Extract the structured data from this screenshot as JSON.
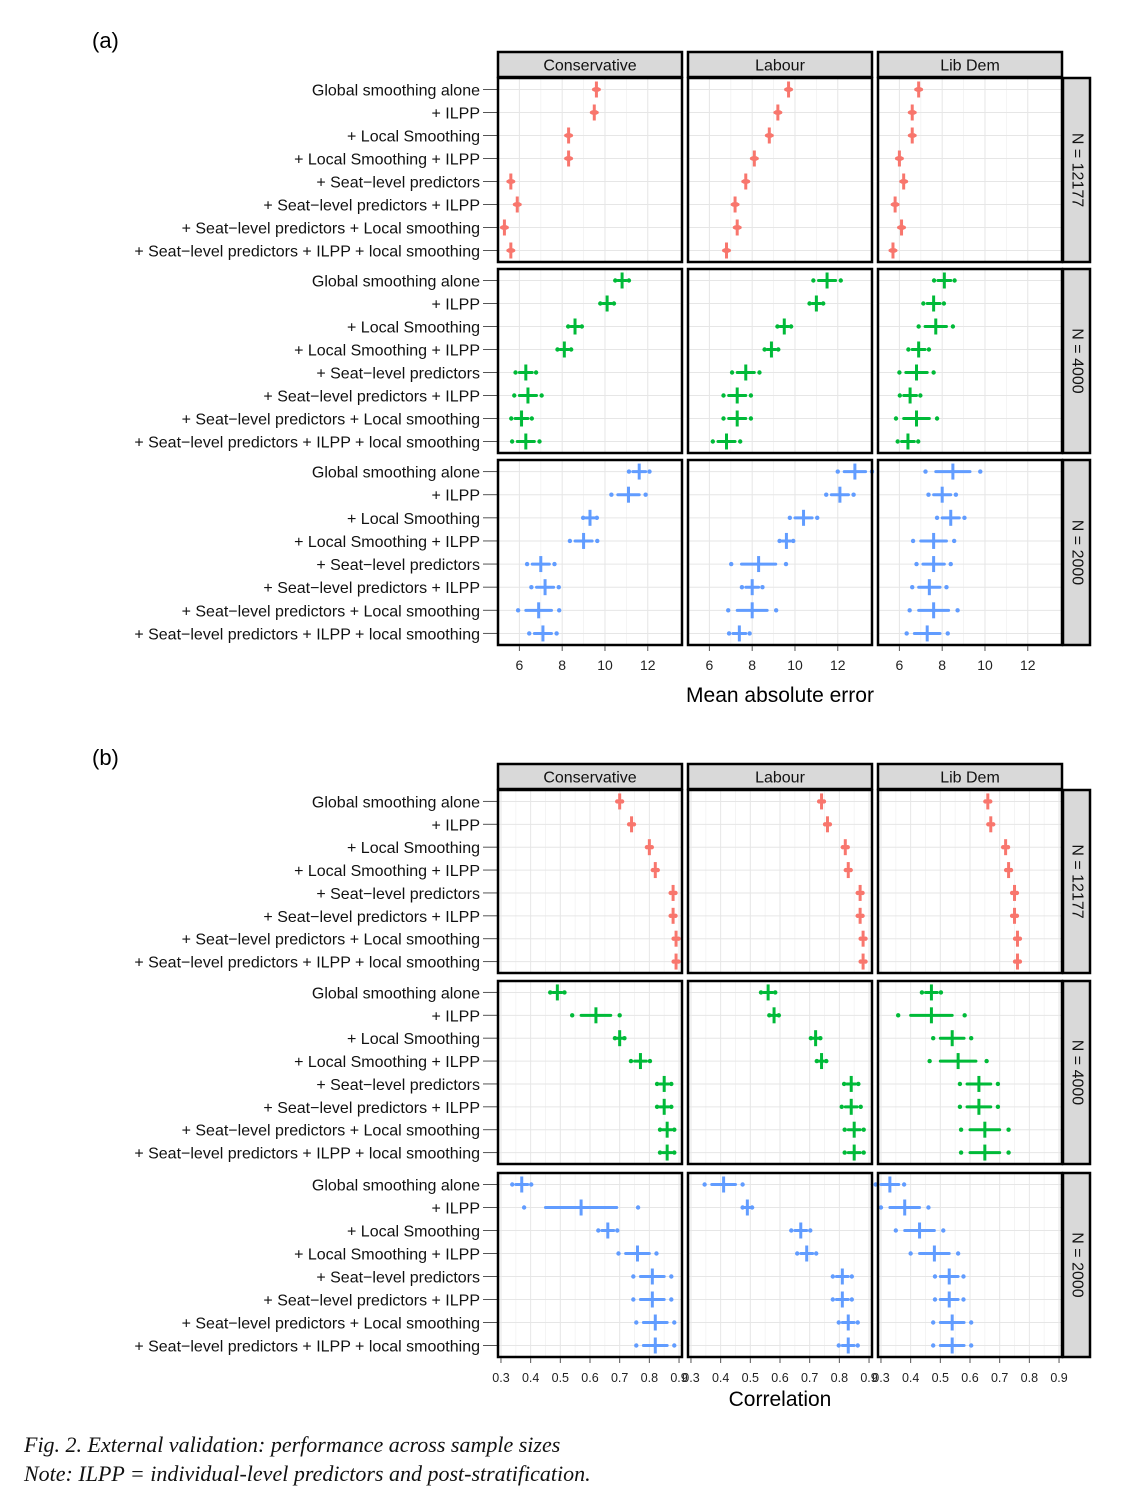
{
  "caption": {
    "line1": "Fig. 2.  External validation: performance across sample sizes",
    "line2": "Note: ILPP = individual-level predictors and post-stratification."
  },
  "colors": {
    "n12177": "#F8766D",
    "n4000": "#00BA38",
    "n2000": "#619CFF",
    "strip": "#D9D9D9"
  },
  "chart_data": [
    {
      "type": "scatter",
      "panel_label": "(a)",
      "xlabel": "Mean absolute error",
      "xlim": [
        5,
        13.6
      ],
      "ticks": [
        6,
        8,
        10,
        12
      ],
      "tick_labels": [
        "6",
        "8",
        "10",
        "12"
      ],
      "parties": [
        "Conservative",
        "Labour",
        "Lib Dem"
      ],
      "sample_sizes": [
        "N = 12177",
        "N = 4000",
        "N = 2000"
      ],
      "models": [
        "Global smoothing alone",
        "+ ILPP",
        "+ Local Smoothing",
        "+ Local Smoothing + ILPP",
        "+ Seat−level predictors",
        "+ Seat−level predictors + ILPP",
        "+ Seat−level predictors + Local smoothing",
        "+ Seat−level predictors + ILPP + local smoothing"
      ],
      "values": [
        [
          [
            9.6,
            9.5,
            8.3,
            8.3,
            5.6,
            5.9,
            5.3,
            5.6
          ],
          [
            9.7,
            9.2,
            8.8,
            8.1,
            7.7,
            7.2,
            7.3,
            6.8
          ],
          [
            6.9,
            6.6,
            6.6,
            6.0,
            6.2,
            5.8,
            6.1,
            5.7
          ]
        ],
        [
          [
            10.8,
            10.1,
            8.6,
            8.1,
            6.3,
            6.4,
            6.1,
            6.3
          ],
          [
            11.5,
            11.0,
            9.5,
            8.9,
            7.7,
            7.3,
            7.3,
            6.8
          ],
          [
            8.1,
            7.6,
            7.7,
            6.9,
            6.8,
            6.5,
            6.8,
            6.4
          ]
        ],
        [
          [
            11.6,
            11.1,
            9.3,
            9.0,
            7.0,
            7.2,
            6.9,
            7.1
          ],
          [
            12.8,
            12.1,
            10.4,
            9.6,
            8.3,
            8.0,
            8.0,
            7.4
          ],
          [
            8.5,
            8.0,
            8.4,
            7.6,
            7.6,
            7.4,
            7.6,
            7.3
          ]
        ]
      ],
      "spreads": [
        [
          [
            0.05,
            0.05,
            0.05,
            0.05,
            0.05,
            0.05,
            0.05,
            0.05
          ],
          [
            0.05,
            0.05,
            0.05,
            0.05,
            0.05,
            0.05,
            0.05,
            0.05
          ],
          [
            0.05,
            0.05,
            0.05,
            0.05,
            0.05,
            0.05,
            0.05,
            0.05
          ]
        ],
        [
          [
            0.2,
            0.2,
            0.2,
            0.2,
            0.3,
            0.4,
            0.3,
            0.4
          ],
          [
            0.4,
            0.2,
            0.2,
            0.2,
            0.4,
            0.4,
            0.4,
            0.4
          ],
          [
            0.3,
            0.3,
            0.5,
            0.3,
            0.5,
            0.3,
            0.6,
            0.3
          ]
        ],
        [
          [
            0.3,
            0.5,
            0.2,
            0.4,
            0.4,
            0.4,
            0.6,
            0.4
          ],
          [
            0.5,
            0.4,
            0.4,
            0.2,
            0.8,
            0.3,
            0.7,
            0.3
          ],
          [
            0.8,
            0.4,
            0.4,
            0.6,
            0.5,
            0.5,
            0.7,
            0.6
          ]
        ]
      ]
    },
    {
      "type": "scatter",
      "panel_label": "(b)",
      "xlabel": "Correlation",
      "xlim": [
        0.29,
        0.91
      ],
      "ticks": [
        0.3,
        0.4,
        0.5,
        0.6,
        0.7,
        0.8,
        0.9
      ],
      "tick_labels": [
        "0.3",
        "0.4",
        "0.5",
        "0.6",
        "0.7",
        "0.8",
        "0.9"
      ],
      "parties": [
        "Conservative",
        "Labour",
        "Lib Dem"
      ],
      "sample_sizes": [
        "N = 12177",
        "N = 4000",
        "N = 2000"
      ],
      "models": [
        "Global smoothing alone",
        "+ ILPP",
        "+ Local Smoothing",
        "+ Local Smoothing + ILPP",
        "+ Seat−level predictors",
        "+ Seat−level predictors + ILPP",
        "+ Seat−level predictors + Local smoothing",
        "+ Seat−level predictors + ILPP + local smoothing"
      ],
      "values": [
        [
          [
            0.7,
            0.74,
            0.8,
            0.82,
            0.88,
            0.88,
            0.89,
            0.89
          ],
          [
            0.74,
            0.76,
            0.82,
            0.83,
            0.87,
            0.87,
            0.88,
            0.88
          ],
          [
            0.66,
            0.67,
            0.72,
            0.73,
            0.75,
            0.75,
            0.76,
            0.76
          ]
        ],
        [
          [
            0.49,
            0.62,
            0.7,
            0.77,
            0.85,
            0.85,
            0.86,
            0.86
          ],
          [
            0.56,
            0.58,
            0.72,
            0.74,
            0.84,
            0.84,
            0.85,
            0.85
          ],
          [
            0.47,
            0.47,
            0.54,
            0.56,
            0.63,
            0.63,
            0.65,
            0.65
          ]
        ],
        [
          [
            0.37,
            0.57,
            0.66,
            0.76,
            0.81,
            0.81,
            0.82,
            0.82
          ],
          [
            0.41,
            0.49,
            0.67,
            0.69,
            0.81,
            0.81,
            0.83,
            0.83
          ],
          [
            0.33,
            0.38,
            0.43,
            0.48,
            0.53,
            0.53,
            0.54,
            0.54
          ]
        ]
      ],
      "spreads": [
        [
          [
            0.005,
            0.005,
            0.005,
            0.005,
            0.005,
            0.005,
            0.005,
            0.005
          ],
          [
            0.005,
            0.005,
            0.005,
            0.005,
            0.005,
            0.005,
            0.005,
            0.005
          ],
          [
            0.005,
            0.005,
            0.005,
            0.005,
            0.005,
            0.005,
            0.005,
            0.005
          ]
        ],
        [
          [
            0.015,
            0.05,
            0.01,
            0.02,
            0.015,
            0.015,
            0.015,
            0.015
          ],
          [
            0.015,
            0.01,
            0.01,
            0.01,
            0.015,
            0.02,
            0.02,
            0.02
          ],
          [
            0.02,
            0.07,
            0.04,
            0.06,
            0.04,
            0.04,
            0.05,
            0.05
          ]
        ],
        [
          [
            0.02,
            0.12,
            0.02,
            0.04,
            0.04,
            0.04,
            0.04,
            0.04
          ],
          [
            0.04,
            0.01,
            0.02,
            0.02,
            0.02,
            0.02,
            0.02,
            0.02
          ],
          [
            0.03,
            0.05,
            0.05,
            0.05,
            0.03,
            0.03,
            0.04,
            0.04
          ]
        ]
      ]
    }
  ]
}
